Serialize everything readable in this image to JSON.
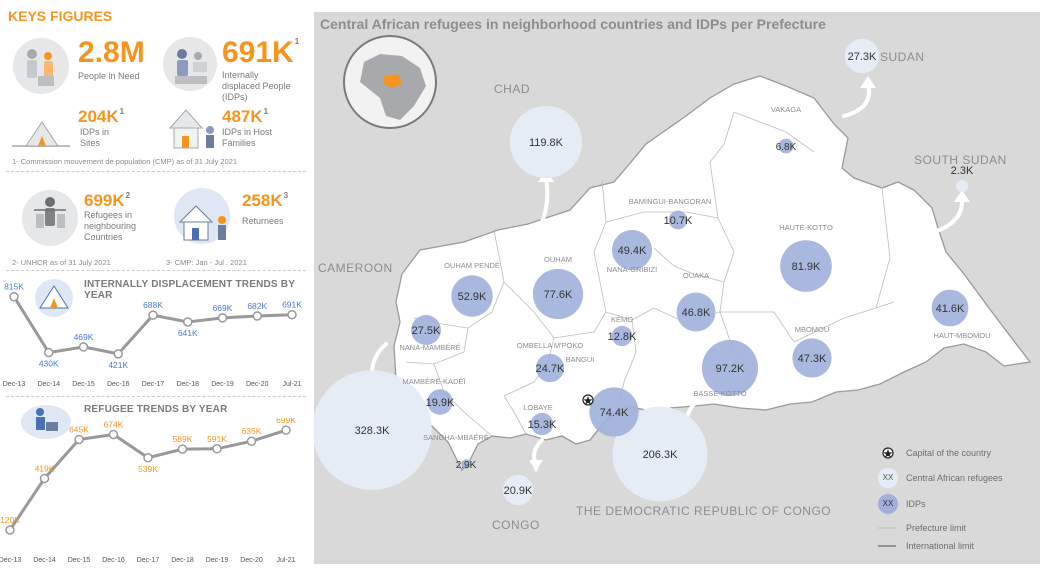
{
  "key_figures": {
    "title": "KEYS FIGURES",
    "people_in_need": {
      "value": "2.8M",
      "label": "People in Need"
    },
    "idps": {
      "value": "691K",
      "sup": "1",
      "label": "Internally displaced People (IDPs)"
    },
    "idps_sites": {
      "value": "204K",
      "sup": "1",
      "label": "IDPs in Sites"
    },
    "idps_host": {
      "value": "487K",
      "sup": "1",
      "label": "IDPs in Host Families"
    },
    "note1": "1- Commission mouvement de population (CMP) as of 31 July 2021",
    "refugees": {
      "value": "699K",
      "sup": "2",
      "label": "Refugees in neighbouring Countries"
    },
    "returnees": {
      "value": "258K",
      "sup": "3",
      "label": "Returnees"
    },
    "note2": "2- UNHCR as of 31 July 2021",
    "note3": "3- CMP: Jan - Jul . 2021"
  },
  "idp_trend": {
    "title": "INTERNALLY DISPLACEMENT TRENDS BY YEAR",
    "chart_data": {
      "type": "line",
      "categories": [
        "Dec-13",
        "Dec-14",
        "Dec-15",
        "Dec-16",
        "Dec-17",
        "Dec-18",
        "Dec-19",
        "Dec-20",
        "Jul-21"
      ],
      "values": [
        815,
        430,
        469,
        421,
        688,
        641,
        669,
        682,
        691
      ],
      "data_labels": [
        "815K",
        "430K",
        "469K",
        "421K",
        "688K",
        "641K",
        "669K",
        "682K",
        "691K"
      ],
      "line_color": "#999999",
      "label_color": "#4a7bd0"
    }
  },
  "refugee_trend": {
    "title": "REFUGEE TRENDS BY YEAR",
    "chart_data": {
      "type": "line",
      "categories": [
        "Dec-13",
        "Dec-14",
        "Dec-15",
        "Dec-16",
        "Dec-17",
        "Dec-18",
        "Dec-19",
        "Dec-20",
        "Jul-21"
      ],
      "values": [
        120,
        419,
        645,
        674,
        539,
        589,
        591,
        635,
        699
      ],
      "data_labels": [
        "120K",
        "419K",
        "645K",
        "674K",
        "539K",
        "589K",
        "591K",
        "635K",
        "699K"
      ],
      "line_color": "#999999",
      "label_color": "#f7941d"
    }
  },
  "map": {
    "title": "Central African refugees in neighborhood countries and IDPs per Prefecture",
    "countries": [
      "CHAD",
      "SUDAN",
      "SOUTH SUDAN",
      "CAMEROON",
      "CONGO",
      "THE DEMOCRATIC REPUBLIC OF CONGO"
    ],
    "refugees": [
      {
        "country": "Chad",
        "value": "119.8K"
      },
      {
        "country": "Sudan",
        "value": "27.3K"
      },
      {
        "country": "South Sudan",
        "value": "2.3K"
      },
      {
        "country": "Cameroon",
        "value": "328.3K"
      },
      {
        "country": "Congo",
        "value": "20.9K"
      },
      {
        "country": "DRC",
        "value": "206.3K"
      }
    ],
    "prefectures": [
      {
        "name": "VAKAGA",
        "idps": "6.8K"
      },
      {
        "name": "BAMINGUI-BANGORAN",
        "idps": "10.7K"
      },
      {
        "name": "HAUTE-KOTTO",
        "idps": "81.9K"
      },
      {
        "name": "OUHAM PENDÉ",
        "idps": "52.9K"
      },
      {
        "name": "OUHAM",
        "idps": "77.6K"
      },
      {
        "name": "NANA-GRIBIZI",
        "idps": "49.4K"
      },
      {
        "name": "OUAKA",
        "idps": "46.8K"
      },
      {
        "name": "KÉMO",
        "idps": "12.8K"
      },
      {
        "name": "NANA-MAMBÉRÉ",
        "idps": "27.5K"
      },
      {
        "name": "OMBELLA M'POKO",
        "idps": "24.7K"
      },
      {
        "name": "MBOMOU",
        "idps": "47.3K"
      },
      {
        "name": "HAUT-MBOMOU",
        "idps": "41.6K"
      },
      {
        "name": "BASSE-KOTTO",
        "idps": "97.2K"
      },
      {
        "name": "MAMBÉRÉ-KADÉÏ",
        "idps": "19.9K"
      },
      {
        "name": "BANGUI",
        "idps": "74.4K"
      },
      {
        "name": "LOBAYE",
        "idps": "15.3K"
      },
      {
        "name": "SANGHA-MBAÉRÉ",
        "idps": "2.9K"
      }
    ],
    "legend": {
      "capital": "Capital of the country",
      "refugees": "Central African refugees",
      "idps": "IDPs",
      "circle_text": "XX",
      "prefecture_limit": "Prefecture limit",
      "international_limit": "International limit"
    },
    "colors": {
      "refugee": "#e6ecf6",
      "idp": "#9fb0dc",
      "land": "#ffffff",
      "outside": "#d9d9da"
    }
  }
}
